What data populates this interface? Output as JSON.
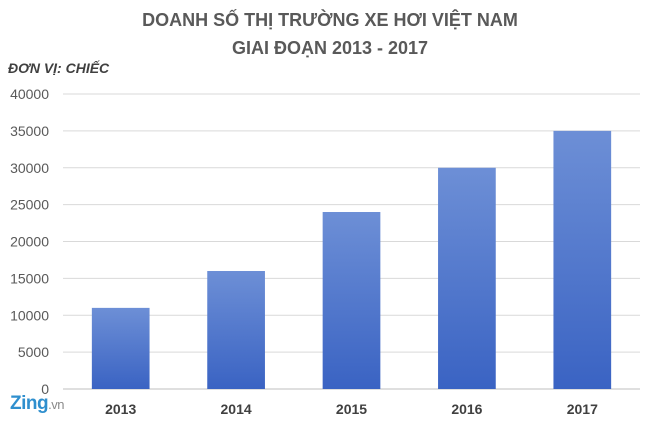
{
  "chart_data": {
    "type": "bar",
    "title_line1": "DOANH SỐ THỊ TRƯỜNG XE HƠI VIỆT NAM",
    "title_line2": "GIAI ĐOẠN 2013 - 2017",
    "unit_label": "ĐƠN VỊ: CHIẾC",
    "categories": [
      "2013",
      "2014",
      "2015",
      "2016",
      "2017"
    ],
    "values": [
      11000,
      16000,
      24000,
      30000,
      35000
    ],
    "ylim": [
      0,
      40000
    ],
    "yticks": [
      "0",
      "5000",
      "10000",
      "15000",
      "20000",
      "25000",
      "30000",
      "35000",
      "40000"
    ],
    "grid": true,
    "bar_color_top": "#6d8fd6",
    "bar_color_bottom": "#3a63c3"
  },
  "watermark": {
    "brand": "Zing",
    "tld": ".vn"
  }
}
